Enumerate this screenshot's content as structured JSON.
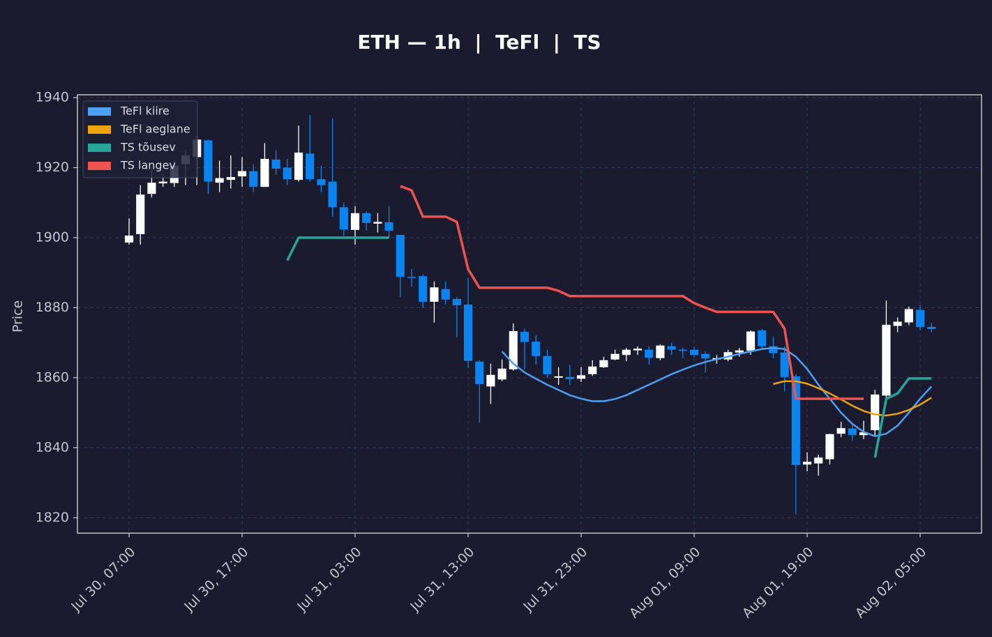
{
  "chart_data": {
    "type": "candlestick",
    "title": "ETH — 1h  |  TeFl  |  TS",
    "ylabel": "Price",
    "up_color": "#ffffff",
    "down_color": "#0a84f0",
    "open": [
      1898.6,
      1901,
      1912.5,
      1915.5,
      1915.6,
      1921,
      1923,
      1927.8,
      1915.7,
      1916.5,
      1917.5,
      1919,
      1914.5,
      1922.3,
      1920,
      1916.5,
      1924,
      1916.7,
      1916,
      1908.7,
      1902.2,
      1907,
      1904,
      1904.4,
      1900.8,
      1888.8,
      1889,
      1881.7,
      1885.3,
      1882.5,
      1880.9,
      1864.6,
      1857.5,
      1859.5,
      1862.4,
      1873.1,
      1870.3,
      1866.2,
      1860,
      1860.2,
      1859.7,
      1861,
      1863,
      1865.2,
      1866.5,
      1867.8,
      1868,
      1865.6,
      1869,
      1868,
      1868,
      1866.8,
      1865.2,
      1865.2,
      1867.2,
      1867.7,
      1873.5,
      1869,
      1867.2,
      1860.4,
      1835.2,
      1835.5,
      1836.7,
      1844,
      1845.5,
      1843.6,
      1845,
      1854.9,
      1874.8,
      1875.8,
      1879.4,
      1874.5
    ],
    "high": [
      1905.5,
      1915,
      1919.5,
      1918,
      1922,
      1925,
      1929,
      1928,
      1922,
      1923.5,
      1923,
      1921,
      1927,
      1925,
      1922.5,
      1932,
      1935,
      1920.5,
      1934,
      1910,
      1909,
      1907.5,
      1907,
      1909,
      1900.8,
      1891,
      1889.5,
      1887.5,
      1887.5,
      1883,
      1888.5,
      1865,
      1864,
      1865.2,
      1875.5,
      1874,
      1872.2,
      1868,
      1863,
      1863.7,
      1863,
      1865,
      1866,
      1868,
      1868.5,
      1869,
      1869,
      1869.5,
      1870,
      1868.5,
      1868.8,
      1867.5,
      1866.5,
      1868,
      1868.5,
      1873.5,
      1874,
      1871.8,
      1869,
      1861,
      1838.7,
      1838,
      1844,
      1847.4,
      1846.5,
      1847.7,
      1856.5,
      1882,
      1877.2,
      1880.3,
      1880.8,
      1875.7
    ],
    "low": [
      1898,
      1898,
      1911.5,
      1914.5,
      1914.5,
      1915,
      1915,
      1912.5,
      1913,
      1914,
      1914.5,
      1913,
      1914.5,
      1918,
      1915,
      1916,
      1916,
      1913,
      1906,
      1900.5,
      1898,
      1902,
      1901.5,
      1900,
      1883,
      1886,
      1880,
      1875.7,
      1881,
      1871.5,
      1862.8,
      1847.2,
      1852.5,
      1859,
      1862,
      1862.4,
      1863.8,
      1860,
      1858,
      1858,
      1858.8,
      1860.5,
      1862.8,
      1865,
      1864.7,
      1866.5,
      1863.7,
      1865,
      1866.5,
      1865.5,
      1865.8,
      1861.5,
      1864,
      1864.7,
      1866,
      1866.5,
      1868,
      1865.5,
      1856,
      1821,
      1833.3,
      1832,
      1835.2,
      1843,
      1842,
      1842.5,
      1843.3,
      1852.6,
      1873,
      1875,
      1873.5,
      1873
    ],
    "close": [
      1900.6,
      1912.3,
      1915.7,
      1916,
      1920.5,
      1923.5,
      1928,
      1916,
      1917,
      1917.3,
      1919,
      1914.5,
      1922.5,
      1919.7,
      1916.7,
      1924.3,
      1916.7,
      1915,
      1908.7,
      1902.3,
      1907,
      1904.2,
      1904.5,
      1902,
      1888.8,
      1888.5,
      1881.7,
      1885.8,
      1882.3,
      1880.7,
      1864.8,
      1858.2,
      1860.8,
      1862.6,
      1873.3,
      1870.2,
      1866.2,
      1861,
      1860.4,
      1859.6,
      1860.7,
      1863.2,
      1865,
      1866.8,
      1868,
      1868.3,
      1865.7,
      1869.2,
      1868,
      1867.8,
      1866.5,
      1865.5,
      1865.6,
      1867.3,
      1867.8,
      1873.2,
      1869,
      1867,
      1860.2,
      1835.1,
      1836,
      1837.2,
      1843.9,
      1845.6,
      1843.6,
      1844.4,
      1855.2,
      1875.1,
      1876,
      1879.6,
      1874.5,
      1873.9
    ],
    "series": [
      {
        "name": "TeFl kiire",
        "color": "#4d9ff5",
        "width": 2.5,
        "values": [
          null,
          null,
          null,
          null,
          null,
          null,
          null,
          null,
          null,
          null,
          null,
          null,
          null,
          null,
          null,
          null,
          null,
          null,
          null,
          null,
          null,
          null,
          null,
          null,
          null,
          null,
          null,
          null,
          null,
          null,
          null,
          null,
          null,
          1867.5,
          1864,
          1861.5,
          1859.7,
          1858,
          1856.5,
          1855,
          1854,
          1853.3,
          1853.3,
          1853.9,
          1855,
          1856.5,
          1858,
          1859.5,
          1861,
          1862.3,
          1863.5,
          1864.5,
          1865.3,
          1866,
          1866.8,
          1867.5,
          1868.2,
          1868.5,
          1868.2,
          1866,
          1862.5,
          1858,
          1854,
          1850,
          1846.8,
          1844.5,
          1843.3,
          1844,
          1846.3,
          1850,
          1854,
          1857.5
        ]
      },
      {
        "name": "TeFl aeglane",
        "color": "#f0a30a",
        "width": 2.5,
        "values": [
          null,
          null,
          null,
          null,
          null,
          null,
          null,
          null,
          null,
          null,
          null,
          null,
          null,
          null,
          null,
          null,
          null,
          null,
          null,
          null,
          null,
          null,
          null,
          null,
          null,
          null,
          null,
          null,
          null,
          null,
          null,
          null,
          null,
          null,
          null,
          null,
          null,
          null,
          null,
          null,
          null,
          null,
          null,
          null,
          null,
          null,
          null,
          null,
          null,
          null,
          null,
          null,
          null,
          null,
          null,
          null,
          null,
          1858.2,
          1859,
          1859,
          1858.3,
          1857,
          1855.5,
          1853.8,
          1852,
          1850.5,
          1849.5,
          1849.2,
          1849.7,
          1850.8,
          1852.3,
          1854.3
        ]
      },
      {
        "name": "TS tõusev",
        "color": "#26a69a",
        "width": 3.5,
        "values": [
          null,
          null,
          null,
          null,
          null,
          null,
          null,
          null,
          null,
          null,
          null,
          null,
          null,
          null,
          1893.5,
          1900,
          1900,
          1900,
          1900,
          1900,
          1900,
          1900,
          1900,
          1900,
          null,
          null,
          null,
          null,
          null,
          null,
          null,
          null,
          null,
          null,
          null,
          null,
          null,
          null,
          null,
          null,
          null,
          null,
          null,
          null,
          null,
          null,
          null,
          null,
          null,
          null,
          null,
          null,
          null,
          null,
          null,
          null,
          null,
          null,
          null,
          null,
          null,
          null,
          null,
          null,
          null,
          null,
          1837.2,
          1854,
          1855.5,
          1859.8,
          1859.8,
          1859.8
        ]
      },
      {
        "name": "TS langev",
        "color": "#ef5350",
        "width": 3.5,
        "values": [
          null,
          null,
          null,
          null,
          null,
          null,
          null,
          null,
          null,
          null,
          null,
          null,
          null,
          null,
          null,
          null,
          null,
          null,
          null,
          null,
          null,
          null,
          null,
          null,
          1914.7,
          1913.5,
          1906,
          1906,
          1906,
          1904.5,
          1891,
          1885.7,
          1885.7,
          1885.7,
          1885.7,
          1885.7,
          1885.7,
          1885.7,
          1884.8,
          1883.3,
          1883.3,
          1883.3,
          1883.3,
          1883.3,
          1883.3,
          1883.3,
          1883.3,
          1883.3,
          1883.3,
          1883.3,
          1881.3,
          1880,
          1878.8,
          1878.8,
          1878.8,
          1878.8,
          1878.8,
          1878.8,
          1874,
          1854,
          1854,
          1854,
          1854,
          1854,
          1854,
          1854,
          null,
          null,
          null,
          null,
          null,
          null
        ]
      }
    ],
    "xlim": [
      -4.57,
      75.43
    ],
    "xticks": [
      {
        "value": 0,
        "label": "Jul 30, 07:00"
      },
      {
        "value": 10,
        "label": "Jul 30, 17:00"
      },
      {
        "value": 20,
        "label": "Jul 31, 03:00"
      },
      {
        "value": 30,
        "label": "Jul 31, 13:00"
      },
      {
        "value": 40,
        "label": "Jul 31, 23:00"
      },
      {
        "value": 50,
        "label": "Aug 01, 09:00"
      },
      {
        "value": 60,
        "label": "Aug 01, 19:00"
      },
      {
        "value": 70,
        "label": "Aug 02, 05:00"
      }
    ],
    "ylim": [
      1815.6,
      1940.8
    ],
    "yticks": [
      1820,
      1840,
      1860,
      1880,
      1900,
      1920,
      1940
    ],
    "grid": true,
    "legend": "upper left"
  }
}
